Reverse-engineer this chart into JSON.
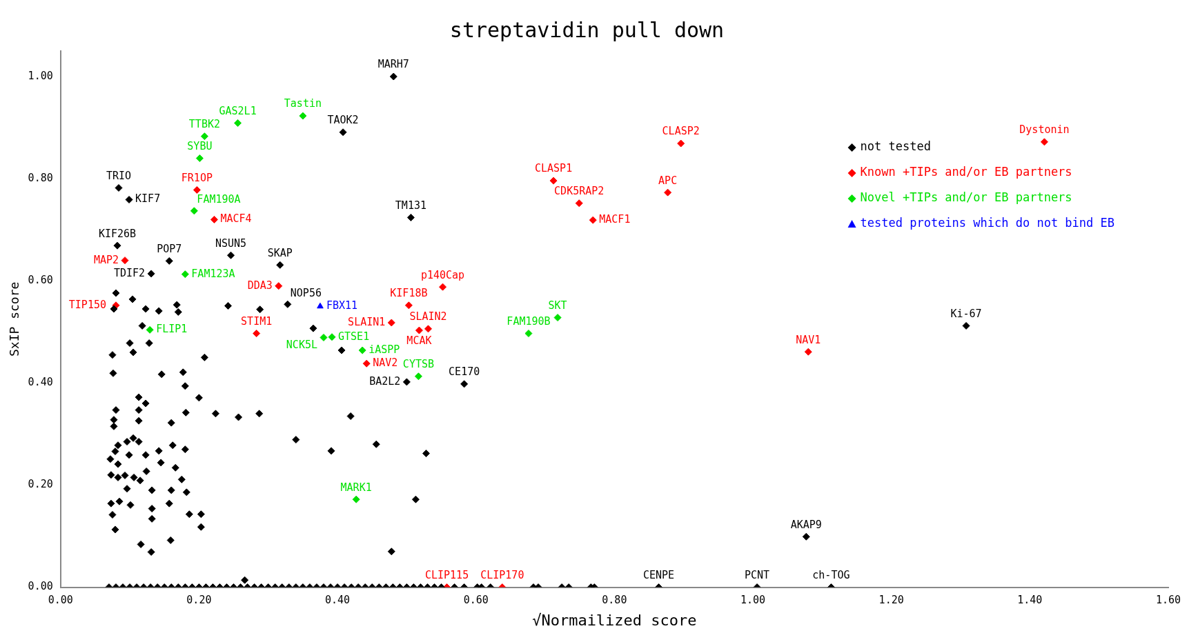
{
  "chart_data": {
    "type": "scatter",
    "title": "streptavidin pull down",
    "xlabel": "√Normailized score",
    "ylabel": "SxIP score",
    "xlim": [
      0,
      1.6
    ],
    "ylim": [
      0,
      1.05
    ],
    "xticks": [
      {
        "value": 0,
        "label": "0.00"
      },
      {
        "value": 0.2,
        "label": "0.20"
      },
      {
        "value": 0.4,
        "label": "0.40"
      },
      {
        "value": 0.6,
        "label": "0.60"
      },
      {
        "value": 0.8,
        "label": "0.80"
      },
      {
        "value": 1.0,
        "label": "1.00"
      },
      {
        "value": 1.2,
        "label": "1.20"
      },
      {
        "value": 1.4,
        "label": "1.40"
      },
      {
        "value": 1.6,
        "label": "1.60"
      }
    ],
    "yticks": [
      {
        "value": 0,
        "label": "0.00"
      },
      {
        "value": 0.2,
        "label": "0.20"
      },
      {
        "value": 0.4,
        "label": "0.40"
      },
      {
        "value": 0.6,
        "label": "0.60"
      },
      {
        "value": 0.8,
        "label": "0.80"
      },
      {
        "value": 1.0,
        "label": "1.00"
      }
    ],
    "grid": false,
    "legend": "top right",
    "series": [
      {
        "name": "not tested",
        "color": "#000000",
        "marker": "diamond",
        "x": [
          0.481,
          0.408,
          0.084,
          0.099,
          0.506,
          0.082,
          0.157,
          0.246,
          0.131,
          0.317,
          0.328,
          0.583,
          0.5,
          1.308,
          1.077,
          0.864,
          1.006,
          1.113,
          0.365,
          0.406,
          0.288,
          0.242,
          0.419,
          0.34,
          0.391,
          0.456,
          0.528,
          0.513,
          0.478,
          0.266,
          0.287,
          0.257,
          0.224,
          0.208,
          0.08,
          0.104,
          0.077,
          0.123,
          0.142,
          0.168,
          0.17,
          0.118,
          0.1,
          0.105,
          0.075,
          0.128,
          0.076,
          0.146,
          0.177,
          0.18,
          0.2,
          0.113,
          0.123,
          0.08,
          0.113,
          0.181,
          0.077,
          0.077,
          0.113,
          0.16,
          0.105,
          0.096,
          0.113,
          0.083,
          0.162,
          0.18,
          0.079,
          0.099,
          0.123,
          0.142,
          0.072,
          0.083,
          0.145,
          0.166,
          0.073,
          0.083,
          0.093,
          0.106,
          0.115,
          0.124,
          0.175,
          0.096,
          0.132,
          0.16,
          0.182,
          0.073,
          0.085,
          0.101,
          0.132,
          0.157,
          0.186,
          0.203,
          0.075,
          0.132,
          0.203,
          0.079,
          0.159,
          0.116,
          0.131,
          0.07,
          0.08,
          0.09,
          0.1,
          0.11,
          0.12,
          0.13,
          0.14,
          0.15,
          0.16,
          0.17,
          0.18,
          0.19,
          0.2,
          0.21,
          0.22,
          0.23,
          0.24,
          0.25,
          0.26,
          0.27,
          0.28,
          0.29,
          0.3,
          0.31,
          0.32,
          0.33,
          0.34,
          0.35,
          0.36,
          0.37,
          0.38,
          0.39,
          0.4,
          0.41,
          0.42,
          0.43,
          0.44,
          0.45,
          0.46,
          0.47,
          0.48,
          0.49,
          0.5,
          0.51,
          0.52,
          0.53,
          0.54,
          0.55,
          0.569,
          0.583,
          0.602,
          0.608,
          0.621,
          0.683,
          0.69,
          0.724,
          0.734,
          0.766,
          0.771
        ],
        "values": [
          1.0,
          0.891,
          0.782,
          0.759,
          0.724,
          0.669,
          0.639,
          0.65,
          0.614,
          0.631,
          0.554,
          0.398,
          0.402,
          0.512,
          0.099,
          0,
          0,
          0,
          0.507,
          0.464,
          0.544,
          0.551,
          0.335,
          0.289,
          0.267,
          0.28,
          0.262,
          0.172,
          0.07,
          0.014,
          0.34,
          0.333,
          0.34,
          0.45,
          0.576,
          0.564,
          0.545,
          0.545,
          0.541,
          0.553,
          0.539,
          0.512,
          0.478,
          0.46,
          0.455,
          0.478,
          0.419,
          0.417,
          0.421,
          0.394,
          0.371,
          0.372,
          0.36,
          0.347,
          0.347,
          0.342,
          0.328,
          0.315,
          0.326,
          0.322,
          0.292,
          0.285,
          0.285,
          0.278,
          0.278,
          0.27,
          0.266,
          0.259,
          0.259,
          0.267,
          0.251,
          0.241,
          0.244,
          0.234,
          0.22,
          0.215,
          0.219,
          0.215,
          0.209,
          0.227,
          0.211,
          0.193,
          0.19,
          0.19,
          0.186,
          0.164,
          0.168,
          0.161,
          0.154,
          0.164,
          0.143,
          0.143,
          0.142,
          0.134,
          0.118,
          0.113,
          0.092,
          0.084,
          0.069,
          0,
          0,
          0,
          0,
          0,
          0,
          0,
          0,
          0,
          0,
          0,
          0,
          0,
          0,
          0,
          0,
          0,
          0,
          0,
          0,
          0,
          0,
          0,
          0,
          0,
          0,
          0,
          0,
          0,
          0,
          0,
          0,
          0,
          0,
          0,
          0,
          0,
          0,
          0,
          0,
          0,
          0,
          0,
          0,
          0,
          0,
          0,
          0,
          0,
          0,
          0,
          0,
          0,
          0,
          0,
          0,
          0,
          0,
          0,
          0
        ],
        "value_labels": [
          "MARH7",
          "TAOK2",
          "TRIO",
          "KIF7",
          "TM131",
          "KIF26B",
          "POP7",
          "NSUN5",
          "TDIF2",
          "SKAP",
          "NOP56",
          "CE170",
          "BA2L2",
          "Ki-67",
          "AKAP9",
          "CENPE",
          "PCNT",
          "ch-TOG",
          null,
          null,
          null,
          null,
          null,
          null,
          null,
          null,
          null,
          null,
          null,
          null,
          null,
          null,
          null,
          null,
          null,
          null,
          null,
          null,
          null,
          null,
          null,
          null,
          null,
          null,
          null,
          null,
          null,
          null,
          null,
          null,
          null,
          null,
          null,
          null,
          null,
          null,
          null,
          null,
          null,
          null,
          null,
          null,
          null,
          null,
          null,
          null,
          null,
          null,
          null,
          null,
          null,
          null,
          null,
          null,
          null,
          null,
          null,
          null,
          null,
          null,
          null,
          null,
          null,
          null,
          null,
          null,
          null,
          null,
          null,
          null,
          null,
          null,
          null,
          null,
          null,
          null,
          null,
          null,
          null,
          null,
          null,
          null,
          null,
          null,
          null,
          null,
          null,
          null,
          null,
          null,
          null,
          null,
          null,
          null,
          null,
          null,
          null,
          null,
          null,
          null,
          null,
          null,
          null,
          null,
          null,
          null,
          null,
          null,
          null,
          null,
          null,
          null,
          null,
          null,
          null,
          null,
          null,
          null,
          null,
          null,
          null,
          null,
          null,
          null,
          null,
          null,
          null,
          null,
          null,
          null,
          null,
          null,
          null,
          null,
          null,
          null,
          null,
          null,
          null
        ]
      },
      {
        "name": "Known +TIPs and/or EB partners",
        "color": "#ff0000",
        "marker": "diamond",
        "x": [
          0.197,
          0.222,
          0.093,
          0.08,
          0.315,
          0.283,
          0.503,
          0.478,
          0.531,
          0.518,
          0.552,
          0.442,
          0.712,
          0.749,
          0.769,
          0.877,
          0.896,
          1.421,
          1.08,
          0.558,
          0.638
        ],
        "values": [
          0.778,
          0.72,
          0.64,
          0.552,
          0.59,
          0.497,
          0.552,
          0.518,
          0.506,
          0.503,
          0.588,
          0.438,
          0.796,
          0.752,
          0.719,
          0.773,
          0.869,
          0.872,
          0.461,
          0,
          0
        ],
        "value_labels": [
          "FR1OP",
          "MACF4",
          "MAP2",
          "TIP150",
          "DDA3",
          "STIM1",
          "KIF18B",
          "SLAIN1",
          "SLAIN2",
          "MCAK",
          "p140Cap",
          "NAV2",
          "CLASP1",
          "CDK5RAP2",
          "MACF1",
          "APC",
          "CLASP2",
          "Dystonin",
          "NAV1",
          "CLIP115",
          "CLIP170"
        ]
      },
      {
        "name": "Novel +TIPs and/or EB partners",
        "color": "#00e000",
        "marker": "diamond",
        "x": [
          0.35,
          0.256,
          0.208,
          0.201,
          0.193,
          0.18,
          0.129,
          0.38,
          0.392,
          0.436,
          0.517,
          0.676,
          0.718,
          0.427
        ],
        "values": [
          0.923,
          0.909,
          0.883,
          0.84,
          0.737,
          0.613,
          0.504,
          0.489,
          0.49,
          0.464,
          0.413,
          0.497,
          0.528,
          0.172
        ],
        "value_labels": [
          "Tastin",
          "GAS2L1",
          "TTBK2",
          "SYBU",
          "FAM190A",
          "FAM123A",
          "FLIP1",
          "NCK5L",
          "GTSE1",
          "iASPP",
          "CYTSB",
          "FAM190B",
          "SKT",
          "MARK1"
        ]
      },
      {
        "name": "tested proteins which do not bind EB",
        "color": "#0000ff",
        "marker": "triangle",
        "x": [
          0.375
        ],
        "values": [
          0.55
        ],
        "value_labels": [
          "FBX11"
        ]
      }
    ]
  }
}
